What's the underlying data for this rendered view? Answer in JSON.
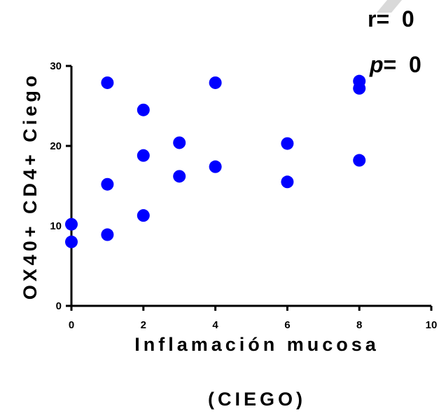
{
  "chart_data": {
    "type": "scatter",
    "title": "",
    "xlabel_line1": "Inflamación mucosa",
    "xlabel_line2": "(CIEGO)",
    "ylabel": "OX40+ CD4+ Ciego",
    "xlim": [
      0,
      10
    ],
    "ylim": [
      0,
      30
    ],
    "x_ticks": [
      0,
      2,
      4,
      6,
      8,
      10
    ],
    "y_ticks": [
      0,
      10,
      20,
      30
    ],
    "grid": false,
    "point_color": "#0000ff",
    "annotations": {
      "r_label": "r",
      "r_value": "=  0",
      "p_label": "p",
      "p_value": "=  0"
    },
    "points": [
      {
        "x": 0,
        "y": 10.2
      },
      {
        "x": 0,
        "y": 8.0
      },
      {
        "x": 1,
        "y": 27.9
      },
      {
        "x": 1,
        "y": 15.2
      },
      {
        "x": 1,
        "y": 8.9
      },
      {
        "x": 2,
        "y": 24.5
      },
      {
        "x": 2,
        "y": 18.8
      },
      {
        "x": 2,
        "y": 11.3
      },
      {
        "x": 3,
        "y": 20.4
      },
      {
        "x": 3,
        "y": 16.2
      },
      {
        "x": 4,
        "y": 27.9
      },
      {
        "x": 4,
        "y": 17.4
      },
      {
        "x": 6,
        "y": 20.3
      },
      {
        "x": 6,
        "y": 15.5
      },
      {
        "x": 8,
        "y": 28.1
      },
      {
        "x": 8,
        "y": 27.2
      },
      {
        "x": 8,
        "y": 18.2
      }
    ]
  }
}
